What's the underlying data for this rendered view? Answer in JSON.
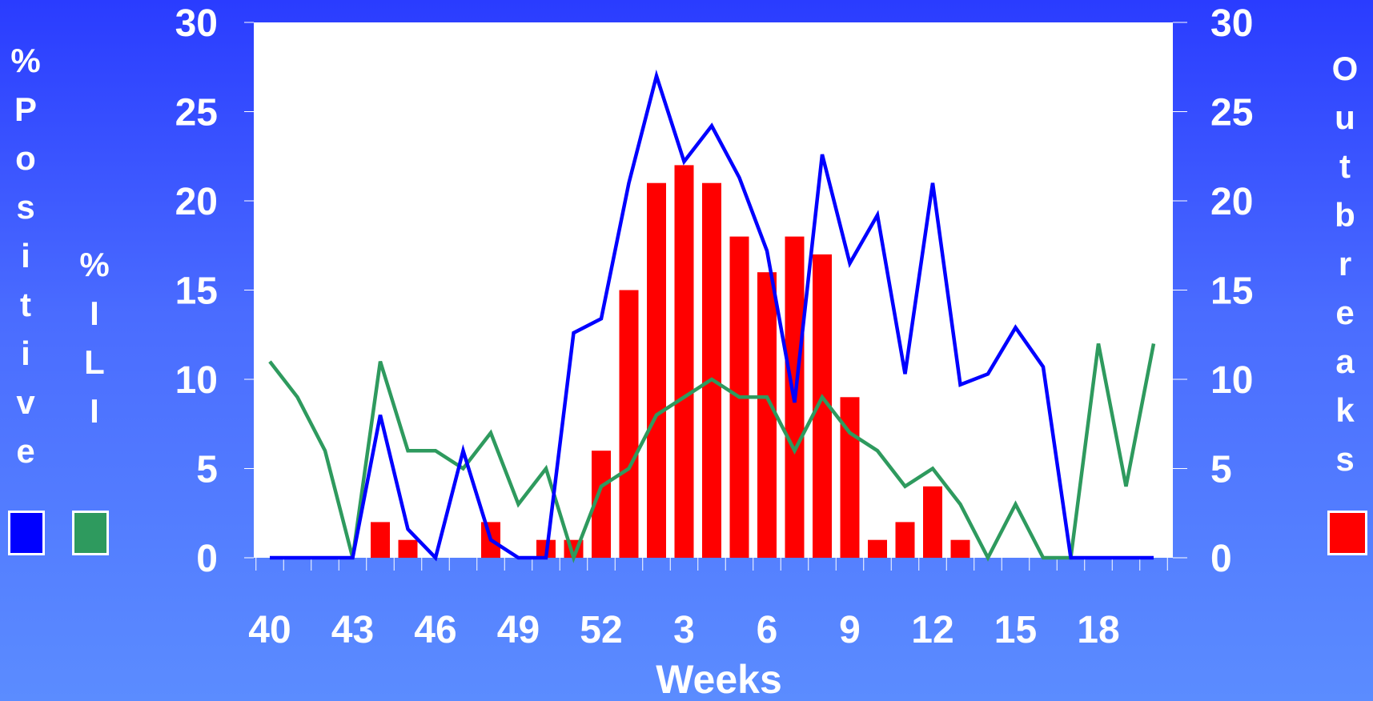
{
  "chart_data": {
    "type": "bar+line",
    "xlabel": "Weeks",
    "weeks": [
      40,
      41,
      42,
      43,
      44,
      45,
      46,
      47,
      48,
      49,
      50,
      51,
      52,
      1,
      2,
      3,
      4,
      5,
      6,
      7,
      8,
      9,
      10,
      11,
      12,
      13,
      14,
      15,
      16,
      17,
      18,
      19,
      20
    ],
    "xtick_labels": [
      "40",
      "43",
      "46",
      "49",
      "52",
      "3",
      "6",
      "9",
      "12",
      "15",
      "18"
    ],
    "y_left_ticks": [
      "0",
      "5",
      "10",
      "15",
      "20",
      "25",
      "30"
    ],
    "y_right_ticks": [
      "0",
      "5",
      "10",
      "15",
      "20",
      "25",
      "30"
    ],
    "ylim": [
      0,
      30
    ],
    "left_axis_labels": {
      "positive": "%Positive",
      "ili": "%ILI"
    },
    "right_axis_label": "Outbreaks",
    "series": [
      {
        "key": "outbreaks",
        "type": "bar",
        "axis": "right",
        "color": "#ff0000",
        "values": [
          0,
          0,
          0,
          0,
          2,
          1,
          0,
          0,
          2,
          0,
          1,
          1,
          6,
          15,
          21,
          22,
          21,
          18,
          16,
          18,
          17,
          9,
          1,
          2,
          4,
          1,
          0,
          0,
          0,
          0,
          0,
          0,
          0
        ]
      },
      {
        "key": "positive",
        "type": "line",
        "axis": "left",
        "color": "#0000ff",
        "values": [
          0,
          0,
          0,
          0,
          8,
          1.6,
          0,
          6,
          1,
          0,
          0,
          12.6,
          13.4,
          21,
          27,
          22.2,
          24.2,
          21.3,
          17.2,
          8.7,
          22.6,
          16.5,
          19.2,
          10.3,
          21,
          9.7,
          10.3,
          12.9,
          10.7,
          0,
          0,
          0,
          0
        ]
      },
      {
        "key": "ili",
        "type": "line",
        "axis": "left",
        "color": "#2e9a5e",
        "values": [
          11,
          9,
          6,
          0,
          11,
          6,
          6,
          5,
          7,
          3,
          5,
          0,
          4,
          5,
          8,
          9,
          10,
          9,
          9,
          6,
          9,
          7,
          6,
          4,
          5,
          3,
          0,
          3,
          0,
          0,
          12,
          4,
          12
        ]
      }
    ]
  },
  "legend": {
    "positive_color": "#0000ff",
    "ili_color": "#2e9a5e",
    "outbreaks_color": "#ff0000"
  }
}
